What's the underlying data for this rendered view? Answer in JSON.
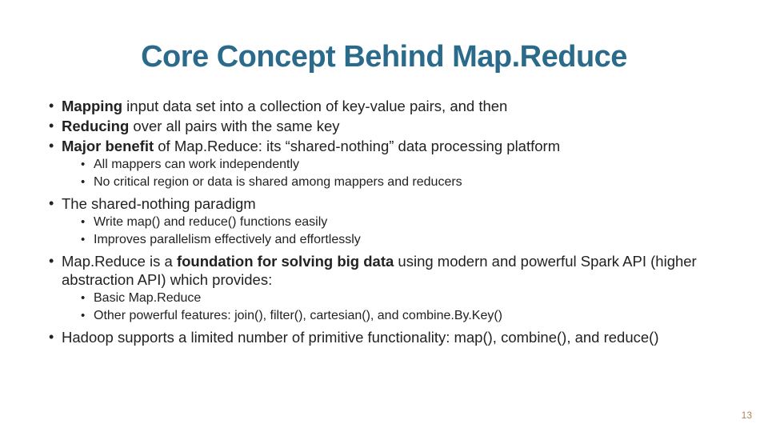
{
  "title": "Core Concept Behind Map.Reduce",
  "colors": {
    "title": "#2a6a8a",
    "text": "#222222",
    "pagenum": "#b0855c",
    "background": "#ffffff"
  },
  "fonts": {
    "title_size": 38,
    "body_size": 18.5,
    "sub_size": 16,
    "pagenum_size": 12
  },
  "b1_bold": "Mapping",
  "b1_rest": " input data set into a collection of key-value pairs, and then",
  "b2_bold": "Reducing",
  "b2_rest": " over all pairs with the same key",
  "b3_bold": "Major benefit",
  "b3_rest": " of Map.Reduce: its “shared-nothing” data processing platform",
  "b3s1": "All mappers can work independently",
  "b3s2": "No critical region or data is shared among mappers and reducers",
  "b4": "The shared-nothing paradigm",
  "b4s1": "Write map() and reduce() functions easily",
  "b4s2": "Improves parallelism effectively and effortlessly",
  "b5_pre": "Map.Reduce is a ",
  "b5_bold": "foundation for solving big data",
  "b5_post": " using modern and powerful Spark API (higher abstraction API) which provides:",
  "b5s1": "Basic Map.Reduce",
  "b5s2": "Other powerful features: join(), filter(), cartesian(), and combine.By.Key()",
  "b6": "Hadoop supports a limited number of primitive functionality: map(), combine(), and reduce()",
  "pagenum": "13"
}
